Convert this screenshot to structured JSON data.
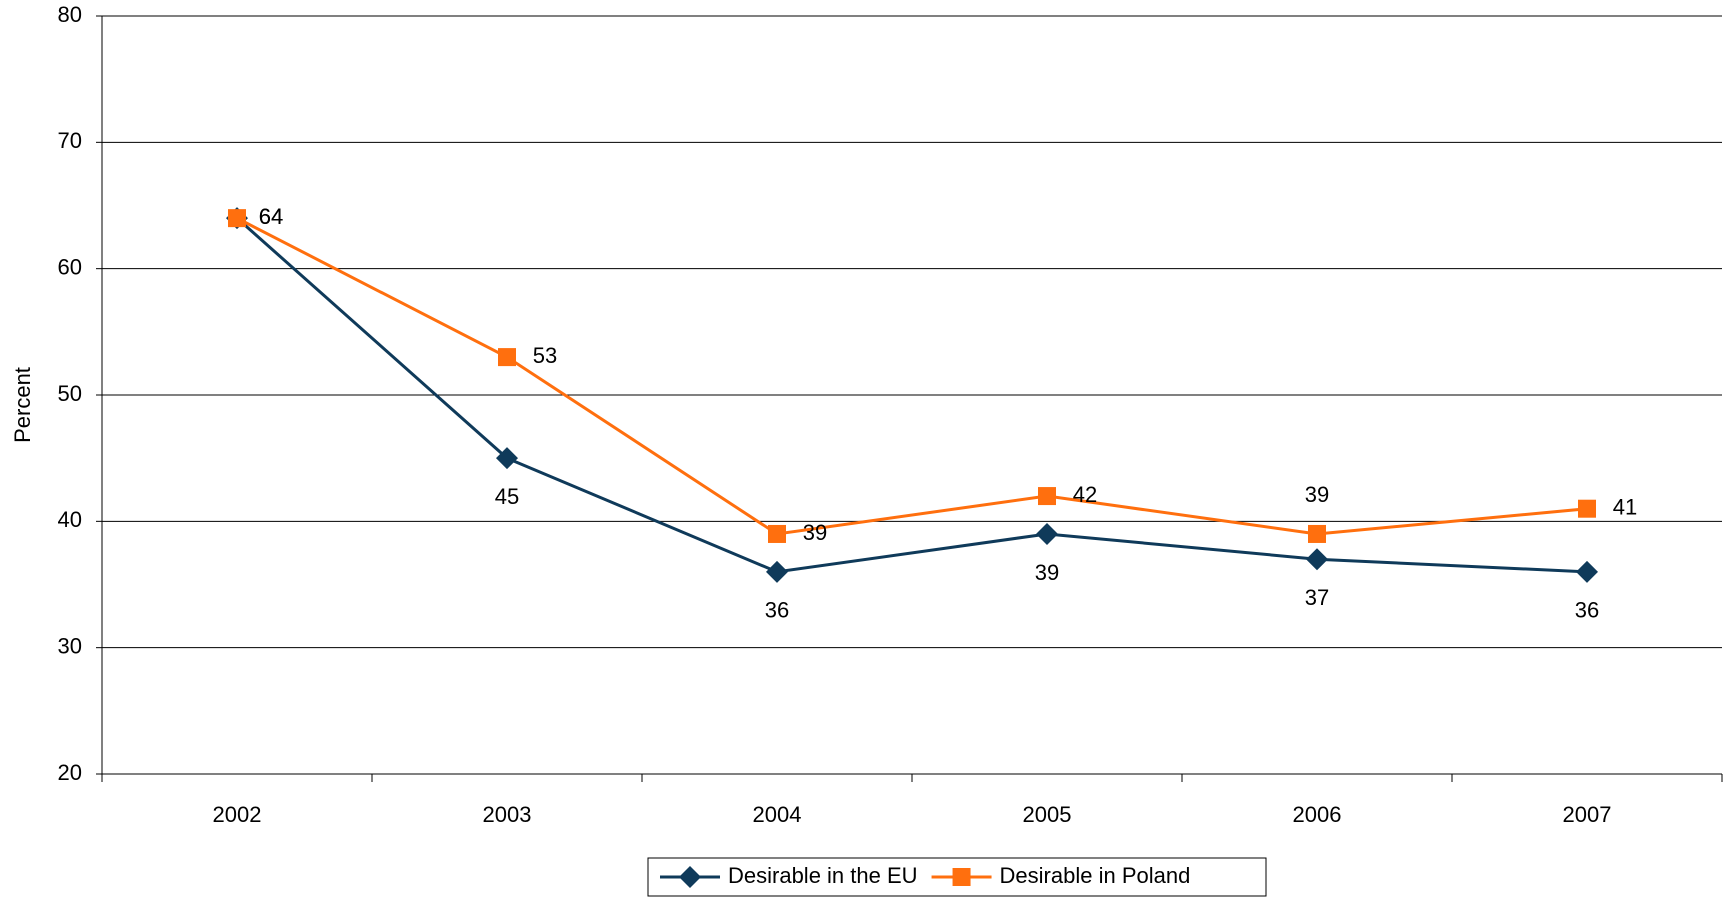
{
  "chart_data": {
    "type": "line",
    "y_label": "Percent",
    "categories": [
      "2002",
      "2003",
      "2004",
      "2005",
      "2006",
      "2007"
    ],
    "series": [
      {
        "name": "Desirable in the EU",
        "color": "#0f3a5a",
        "marker": "diamond",
        "values": [
          64,
          45,
          36,
          39,
          37,
          36
        ]
      },
      {
        "name": "Desirable in Poland",
        "color": "#ff6f0e",
        "marker": "square",
        "values": [
          64,
          53,
          39,
          42,
          39,
          41
        ]
      }
    ],
    "ylim": [
      20,
      80
    ],
    "yticks": [
      20,
      30,
      40,
      50,
      60,
      70,
      80
    ],
    "grid": true
  }
}
